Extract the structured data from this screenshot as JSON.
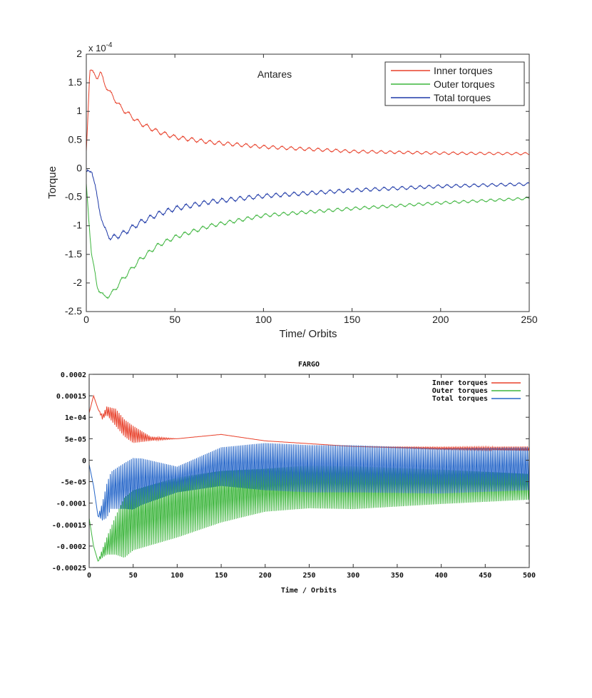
{
  "chart_data": [
    {
      "type": "line",
      "title": "Antares",
      "xlabel": "Time/ Orbits",
      "ylabel": "Torque",
      "exponent_label": "x 10",
      "exponent_power": "-4",
      "xlim": [
        0,
        250
      ],
      "ylim": [
        -2.5,
        2
      ],
      "xticks": [
        0,
        50,
        100,
        150,
        200,
        250
      ],
      "xtick_labels": [
        "0",
        "50",
        "100",
        "150",
        "200",
        "250"
      ],
      "yticks": [
        -2.5,
        -2,
        -1.5,
        -1,
        -0.5,
        0,
        0.5,
        1,
        1.5,
        2
      ],
      "ytick_labels": [
        "-2.5",
        "-2",
        "-1.5",
        "-1",
        "-0.5",
        "0",
        "0.5",
        "1",
        "1.5",
        "2"
      ],
      "grid": false,
      "legend_position": "top-right",
      "series": [
        {
          "name": "Inner torques",
          "color": "#e8402a",
          "noise": 0.05,
          "points": [
            [
              0,
              0.3
            ],
            [
              2,
              1.75
            ],
            [
              4,
              1.65
            ],
            [
              6,
              1.6
            ],
            [
              8,
              1.68
            ],
            [
              10,
              1.5
            ],
            [
              14,
              1.3
            ],
            [
              20,
              1.05
            ],
            [
              30,
              0.8
            ],
            [
              40,
              0.65
            ],
            [
              50,
              0.55
            ],
            [
              70,
              0.46
            ],
            [
              100,
              0.38
            ],
            [
              150,
              0.3
            ],
            [
              200,
              0.27
            ],
            [
              250,
              0.26
            ]
          ]
        },
        {
          "name": "Outer torques",
          "color": "#3db53d",
          "noise": 0.05,
          "points": [
            [
              0,
              -0.3
            ],
            [
              3,
              -1.5
            ],
            [
              6,
              -2.05
            ],
            [
              10,
              -2.25
            ],
            [
              14,
              -2.2
            ],
            [
              20,
              -1.95
            ],
            [
              30,
              -1.6
            ],
            [
              40,
              -1.35
            ],
            [
              50,
              -1.2
            ],
            [
              70,
              -1.0
            ],
            [
              100,
              -0.82
            ],
            [
              150,
              -0.7
            ],
            [
              200,
              -0.6
            ],
            [
              250,
              -0.52
            ]
          ]
        },
        {
          "name": "Total torques",
          "color": "#1f3aa8",
          "noise": 0.06,
          "points": [
            [
              0,
              -0.1
            ],
            [
              3,
              0.0
            ],
            [
              6,
              -0.5
            ],
            [
              10,
              -1.05
            ],
            [
              14,
              -1.22
            ],
            [
              20,
              -1.15
            ],
            [
              30,
              -0.95
            ],
            [
              40,
              -0.8
            ],
            [
              50,
              -0.7
            ],
            [
              70,
              -0.58
            ],
            [
              100,
              -0.48
            ],
            [
              150,
              -0.38
            ],
            [
              200,
              -0.31
            ],
            [
              250,
              -0.27
            ]
          ]
        }
      ]
    },
    {
      "type": "line",
      "title": "FARGO",
      "xlabel": "Time / Orbits",
      "xlim": [
        0,
        500
      ],
      "ylim": [
        -0.00025,
        0.0002
      ],
      "xticks": [
        0,
        50,
        100,
        150,
        200,
        250,
        300,
        350,
        400,
        450,
        500
      ],
      "xtick_labels": [
        "0",
        "50",
        "100",
        "150",
        "200",
        "250",
        "300",
        "350",
        "400",
        "450",
        "500"
      ],
      "yticks": [
        -0.00025,
        -0.0002,
        -0.00015,
        -0.0001,
        -5e-05,
        0,
        5e-05,
        0.0001,
        0.00015,
        0.0002
      ],
      "ytick_labels": [
        "-0.00025",
        "-0.0002",
        "-0.00015",
        "-0.0001",
        "-5e-05",
        "0",
        "5e-05",
        "1e-04",
        "0.00015",
        "0.0002"
      ],
      "grid": false,
      "legend_position": "top-right",
      "series": [
        {
          "name": "Inner torques",
          "color": "#e8402a",
          "points": [
            [
              0,
              0.00011
            ],
            [
              5,
              0.00015
            ],
            [
              10,
              0.00012
            ],
            [
              15,
              0.0001
            ],
            [
              20,
              0.000115
            ],
            [
              30,
              0.0001
            ],
            [
              40,
              7.5e-05
            ],
            [
              50,
              6e-05
            ],
            [
              70,
              5e-05
            ],
            [
              100,
              5e-05
            ],
            [
              150,
              6e-05
            ],
            [
              200,
              4.5e-05
            ],
            [
              300,
              3.2e-05
            ],
            [
              400,
              2.8e-05
            ],
            [
              500,
              2.7e-05
            ]
          ],
          "band": [
            [
              10,
              0.0
            ],
            [
              30,
              2e-05
            ],
            [
              50,
              2e-05
            ],
            [
              70,
              5e-06
            ],
            [
              100,
              0.0
            ],
            [
              300,
              0.0
            ],
            [
              500,
              5e-06
            ]
          ]
        },
        {
          "name": "Outer torques",
          "color": "#3db53d",
          "points": [
            [
              0,
              -0.000135
            ],
            [
              5,
              -0.0002
            ],
            [
              10,
              -0.000235
            ],
            [
              20,
              -0.0002
            ],
            [
              30,
              -0.000175
            ],
            [
              50,
              -0.00014
            ],
            [
              100,
              -0.00011
            ],
            [
              150,
              -8.5e-05
            ],
            [
              200,
              -7e-05
            ],
            [
              250,
              -6.2e-05
            ],
            [
              300,
              -6.4e-05
            ],
            [
              400,
              -6.2e-05
            ],
            [
              500,
              -6.2e-05
            ]
          ],
          "band": [
            [
              10,
              0.0
            ],
            [
              20,
              2e-05
            ],
            [
              40,
              7e-05
            ],
            [
              100,
              7e-05
            ],
            [
              200,
              5e-05
            ],
            [
              300,
              5e-05
            ],
            [
              500,
              3e-05
            ]
          ]
        },
        {
          "name": "Total torques",
          "color": "#2767c9",
          "points": [
            [
              0,
              -1e-05
            ],
            [
              5,
              -6e-05
            ],
            [
              10,
              -0.00013
            ],
            [
              15,
              -0.00012
            ],
            [
              25,
              -7e-05
            ],
            [
              40,
              -6e-05
            ],
            [
              60,
              -5e-05
            ],
            [
              100,
              -4.5e-05
            ],
            [
              150,
              -1.5e-05
            ],
            [
              200,
              -1.5e-05
            ],
            [
              250,
              -2e-05
            ],
            [
              300,
              -2e-05
            ],
            [
              400,
              -2.5e-05
            ],
            [
              500,
              -2e-05
            ]
          ],
          "band": [
            [
              10,
              0.0
            ],
            [
              20,
              4e-05
            ],
            [
              50,
              6e-05
            ],
            [
              100,
              3e-05
            ],
            [
              150,
              4.5e-05
            ],
            [
              200,
              5.5e-05
            ],
            [
              300,
              5.5e-05
            ],
            [
              500,
              5e-05
            ]
          ]
        }
      ]
    }
  ]
}
